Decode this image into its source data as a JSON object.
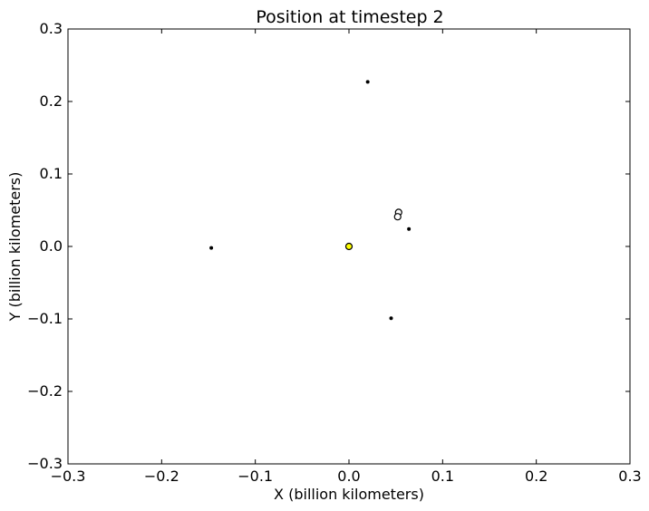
{
  "chart_data": {
    "type": "scatter",
    "title": "Position at timestep 2",
    "xlabel": "X (billion kilometers)",
    "ylabel": "Y (billion kilometers)",
    "xlim": [
      -0.3,
      0.3
    ],
    "ylim": [
      -0.3,
      0.3
    ],
    "xticks": [
      -0.3,
      -0.2,
      -0.1,
      0.0,
      0.1,
      0.2,
      0.3
    ],
    "yticks": [
      -0.3,
      -0.2,
      -0.1,
      0.0,
      0.1,
      0.2,
      0.3
    ],
    "xtick_labels": [
      "−0.3",
      "−0.2",
      "−0.1",
      "0.0",
      "0.1",
      "0.2",
      "0.3"
    ],
    "ytick_labels": [
      "−0.3",
      "−0.2",
      "−0.1",
      "0.0",
      "0.1",
      "0.2",
      "0.3"
    ],
    "grid": false,
    "points": [
      {
        "x": 0.0,
        "y": 0.0,
        "color": "#ffff00",
        "marker": "large"
      },
      {
        "x": 0.02,
        "y": 0.227,
        "color": "#000000",
        "marker": "small"
      },
      {
        "x": -0.147,
        "y": -0.002,
        "color": "#000000",
        "marker": "small"
      },
      {
        "x": 0.064,
        "y": 0.024,
        "color": "#000000",
        "marker": "small"
      },
      {
        "x": 0.045,
        "y": -0.099,
        "color": "#000000",
        "marker": "small"
      },
      {
        "x": 0.053,
        "y": 0.047,
        "color": "#ffffff",
        "marker": "ring"
      },
      {
        "x": 0.052,
        "y": 0.041,
        "color": "#ffffff",
        "marker": "ring"
      }
    ]
  }
}
